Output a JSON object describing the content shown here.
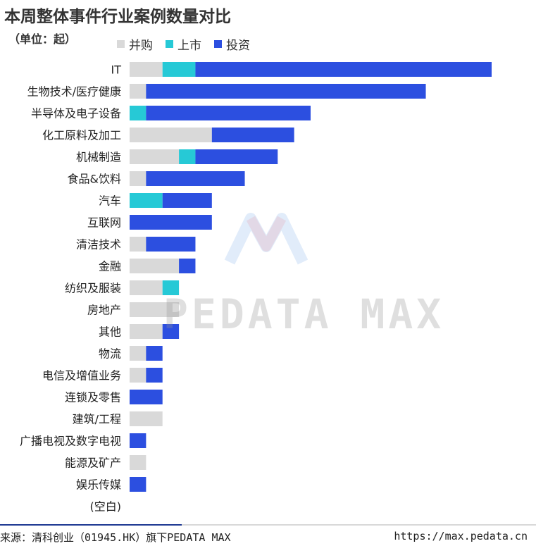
{
  "header": {
    "title": "本周整体事件行业案例数量对比",
    "unit": "（单位：起）"
  },
  "colors": {
    "并购": "#d9d9d9",
    "上市": "#26c9d6",
    "投资": "#2c4fe0"
  },
  "chart_data": {
    "type": "bar",
    "orientation": "horizontal",
    "stacked": true,
    "title": "本周整体事件行业案例数量对比",
    "unit": "（单位：起）",
    "legend_position": "top",
    "grid": false,
    "categories": [
      "IT",
      "生物技术/医疗健康",
      "半导体及电子设备",
      "化工原料及加工",
      "机械制造",
      "食品&饮料",
      "汽车",
      "互联网",
      "清洁技术",
      "金融",
      "纺织及服装",
      "房地产",
      "其他",
      "物流",
      "电信及增值业务",
      "连锁及零售",
      "建筑/工程",
      "广播电视及数字电视",
      "能源及矿产",
      "娱乐传媒",
      "(空白)"
    ],
    "series": [
      {
        "name": "并购",
        "values": [
          2,
          1,
          0,
          5,
          3,
          1,
          0,
          0,
          1,
          3,
          2,
          3,
          2,
          1,
          1,
          0,
          2,
          0,
          1,
          0,
          0
        ]
      },
      {
        "name": "上市",
        "values": [
          2,
          0,
          1,
          0,
          1,
          0,
          2,
          0,
          0,
          0,
          1,
          0,
          0,
          0,
          0,
          0,
          0,
          0,
          0,
          0,
          0
        ]
      },
      {
        "name": "投资",
        "values": [
          18,
          17,
          10,
          5,
          5,
          6,
          3,
          5,
          3,
          1,
          0,
          0,
          1,
          1,
          1,
          2,
          0,
          1,
          0,
          1,
          0
        ]
      }
    ],
    "xlim": [
      0,
      22
    ]
  },
  "watermark": {
    "text": "PEDATA MAX"
  },
  "footer": {
    "source": "来源：清科创业（01945.HK）旗下PEDATA MAX",
    "url": "https://max.pedata.cn"
  }
}
